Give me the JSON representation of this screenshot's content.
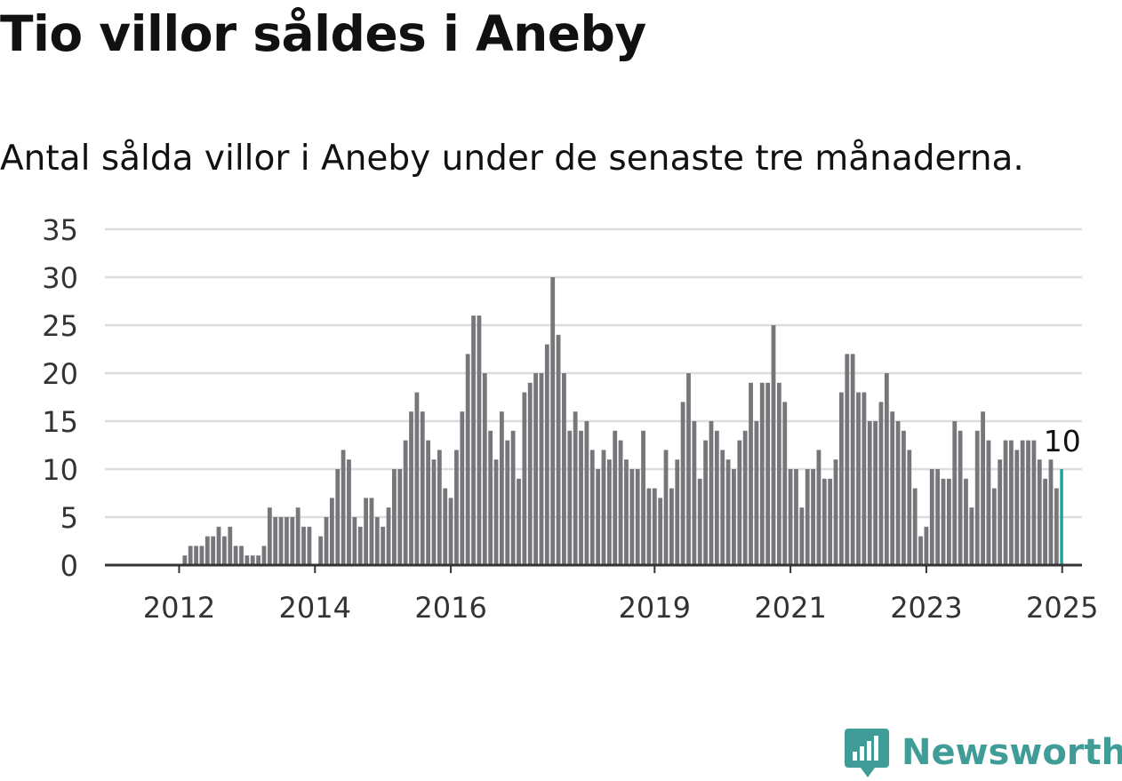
{
  "header": {
    "title": "Tio villor såldes i Aneby",
    "subtitle": "Antal sålda villor i Aneby under de senaste tre månaderna."
  },
  "brand": {
    "name": "Newsworthy",
    "icon": "newsworthy-logo-icon",
    "color": "#3f9c96"
  },
  "chart_data": {
    "type": "bar",
    "title": "Tio villor såldes i Aneby",
    "subtitle": "Antal sålda villor i Aneby under de senaste tre månaderna.",
    "xlabel": "",
    "ylabel": "",
    "ylim": [
      0,
      35
    ],
    "yticks": [
      0,
      5,
      10,
      15,
      20,
      25,
      30,
      35
    ],
    "grid": true,
    "legend": "none",
    "colors": {
      "bar": "#77767b",
      "highlight": "#22a29a",
      "grid": "#dddddd",
      "axis": "#333333"
    },
    "start": "2011-09",
    "frequency": "monthly",
    "xtick_labels": [
      {
        "label": "2012",
        "month": "2012-01"
      },
      {
        "label": "2014",
        "month": "2014-01"
      },
      {
        "label": "2016",
        "month": "2016-01"
      },
      {
        "label": "2019",
        "month": "2019-01"
      },
      {
        "label": "2021",
        "month": "2021-01"
      },
      {
        "label": "2023",
        "month": "2023-01"
      },
      {
        "label": "2025",
        "month": "2025-01"
      }
    ],
    "highlight": {
      "month": "2025-01",
      "value": 10,
      "label": "10"
    },
    "values": [
      0,
      0,
      0,
      0,
      0,
      1,
      2,
      2,
      2,
      3,
      3,
      4,
      3,
      4,
      2,
      2,
      1,
      1,
      1,
      2,
      6,
      5,
      5,
      5,
      5,
      6,
      4,
      4,
      0,
      3,
      5,
      7,
      10,
      12,
      11,
      5,
      4,
      7,
      7,
      5,
      4,
      6,
      10,
      10,
      13,
      16,
      18,
      16,
      13,
      11,
      12,
      8,
      7,
      12,
      16,
      22,
      26,
      26,
      20,
      14,
      11,
      16,
      13,
      14,
      9,
      18,
      19,
      20,
      20,
      23,
      30,
      24,
      20,
      14,
      16,
      14,
      15,
      12,
      10,
      12,
      11,
      14,
      13,
      11,
      10,
      10,
      14,
      8,
      8,
      7,
      12,
      8,
      11,
      17,
      20,
      15,
      9,
      13,
      15,
      14,
      12,
      11,
      10,
      13,
      14,
      19,
      15,
      19,
      19,
      25,
      19,
      17,
      10,
      10,
      6,
      10,
      10,
      12,
      9,
      9,
      11,
      18,
      22,
      22,
      18,
      18,
      15,
      15,
      17,
      20,
      16,
      15,
      14,
      12,
      8,
      3,
      4,
      10,
      10,
      9,
      9,
      15,
      14,
      9,
      6,
      14,
      16,
      13,
      8,
      11,
      13,
      13,
      12,
      13,
      13,
      13,
      11,
      9,
      11,
      8,
      10
    ]
  }
}
